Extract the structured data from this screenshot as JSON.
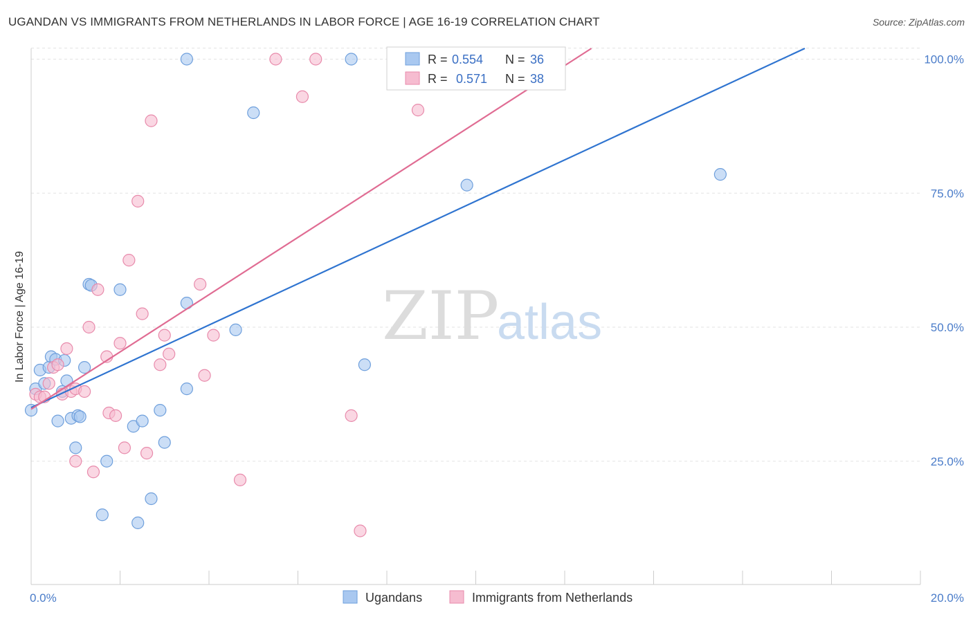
{
  "title": "UGANDAN VS IMMIGRANTS FROM NETHERLANDS IN LABOR FORCE | AGE 16-19 CORRELATION CHART",
  "source": "Source: ZipAtlas.com",
  "watermark": {
    "zip": "ZIP",
    "atlas": "atlas"
  },
  "colors": {
    "ugandans_fill": "#a9c8f0",
    "ugandans_stroke": "#6e9fdc",
    "ugandans_line": "#2f74d0",
    "netherlands_fill": "#f6bcd0",
    "netherlands_stroke": "#e88aab",
    "netherlands_line": "#e06c93",
    "grid": "#e3e3e3",
    "axis": "#cccccc",
    "tick_label": "#4a7cc9"
  },
  "stats_box": {
    "rows": [
      {
        "r_label": "R = ",
        "r_value": "0.554",
        "n_label": "N = ",
        "n_value": "36"
      },
      {
        "r_label": "R = ",
        "r_value": "0.571",
        "n_label": "N = ",
        "n_value": "38"
      }
    ]
  },
  "chart_data": {
    "type": "scatter",
    "title": "UGANDAN VS IMMIGRANTS FROM NETHERLANDS IN LABOR FORCE | AGE 16-19 CORRELATION CHART",
    "xlabel": "",
    "ylabel": "In Labor Force | Age 16-19",
    "xlim": [
      0,
      20
    ],
    "ylim": [
      2,
      102
    ],
    "x_tick_labels": [
      {
        "value": 0,
        "label": "0.0%"
      },
      {
        "value": 20,
        "label": "20.0%"
      }
    ],
    "y_tick_labels": [
      {
        "value": 25,
        "label": "25.0%"
      },
      {
        "value": 50,
        "label": "50.0%"
      },
      {
        "value": 75,
        "label": "75.0%"
      },
      {
        "value": 100,
        "label": "100.0%"
      }
    ],
    "grid": true,
    "legend_position": "bottom-center",
    "series": [
      {
        "name": "Ugandans",
        "color": "#a9c8f0",
        "trend": {
          "x0": 0.0,
          "y0": 35.0,
          "x1": 17.4,
          "y1": 102.0
        },
        "points": [
          [
            0.0,
            34.5
          ],
          [
            0.1,
            38.5
          ],
          [
            0.2,
            42.0
          ],
          [
            0.3,
            39.5
          ],
          [
            0.4,
            42.5
          ],
          [
            0.45,
            44.5
          ],
          [
            0.55,
            44.0
          ],
          [
            0.6,
            32.5
          ],
          [
            0.7,
            38.0
          ],
          [
            0.75,
            43.8
          ],
          [
            0.8,
            40.0
          ],
          [
            0.9,
            33.0
          ],
          [
            1.0,
            27.5
          ],
          [
            1.05,
            33.5
          ],
          [
            1.1,
            33.3
          ],
          [
            1.2,
            42.5
          ],
          [
            1.3,
            58.0
          ],
          [
            1.35,
            57.8
          ],
          [
            1.7,
            25.0
          ],
          [
            1.6,
            15.0
          ],
          [
            2.0,
            57.0
          ],
          [
            2.3,
            31.5
          ],
          [
            2.4,
            13.5
          ],
          [
            2.5,
            32.5
          ],
          [
            2.7,
            18.0
          ],
          [
            2.9,
            34.5
          ],
          [
            3.0,
            28.5
          ],
          [
            3.5,
            38.5
          ],
          [
            3.5,
            100.0
          ],
          [
            3.5,
            54.5
          ],
          [
            4.6,
            49.5
          ],
          [
            5.0,
            90.0
          ],
          [
            7.2,
            100.0
          ],
          [
            7.5,
            43.0
          ],
          [
            9.8,
            76.5
          ],
          [
            15.5,
            78.5
          ]
        ]
      },
      {
        "name": "Immigrants from Netherlands",
        "color": "#f6bcd0",
        "trend": {
          "x0": 0.0,
          "y0": 34.7,
          "x1": 12.6,
          "y1": 102.0
        },
        "points": [
          [
            0.1,
            37.5
          ],
          [
            0.2,
            37.0
          ],
          [
            0.3,
            37.0
          ],
          [
            0.4,
            39.5
          ],
          [
            0.5,
            42.5
          ],
          [
            0.6,
            43.0
          ],
          [
            0.7,
            37.5
          ],
          [
            0.8,
            46.0
          ],
          [
            0.9,
            38.0
          ],
          [
            1.0,
            38.5
          ],
          [
            1.0,
            25.0
          ],
          [
            1.2,
            38.0
          ],
          [
            1.3,
            50.0
          ],
          [
            1.4,
            23.0
          ],
          [
            1.5,
            57.0
          ],
          [
            1.7,
            44.5
          ],
          [
            1.75,
            34.0
          ],
          [
            1.9,
            33.5
          ],
          [
            2.0,
            47.0
          ],
          [
            2.1,
            27.5
          ],
          [
            2.2,
            62.5
          ],
          [
            2.4,
            73.5
          ],
          [
            2.5,
            52.5
          ],
          [
            2.6,
            26.5
          ],
          [
            2.7,
            88.5
          ],
          [
            2.9,
            43.0
          ],
          [
            3.0,
            48.5
          ],
          [
            3.1,
            45.0
          ],
          [
            3.8,
            58.0
          ],
          [
            3.9,
            41.0
          ],
          [
            4.1,
            48.5
          ],
          [
            4.7,
            21.5
          ],
          [
            5.5,
            100.0
          ],
          [
            6.1,
            93.0
          ],
          [
            6.4,
            100.0
          ],
          [
            7.2,
            33.5
          ],
          [
            7.4,
            12.0
          ],
          [
            8.7,
            90.5
          ]
        ]
      }
    ]
  }
}
